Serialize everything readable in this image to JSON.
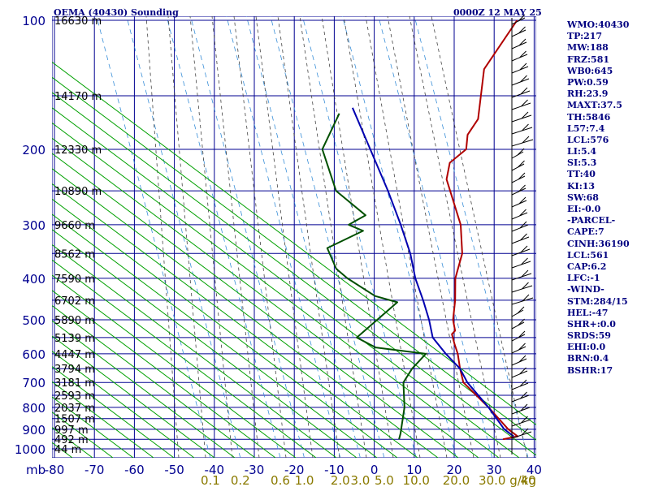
{
  "header": {
    "title": "OEMA (40430) Sounding",
    "timestamp": "0000Z 12 MAY 25"
  },
  "colors": {
    "grid": "#000090",
    "isotherm": "#000090",
    "dry_adiabat": "#00a000",
    "moist_adiabat": "#444444",
    "mixing_ratio": "#3a8fd8",
    "temperature": "#b00000",
    "dewpoint": "#005000",
    "parcel": "#0000b0",
    "axis_label": "#000090",
    "mixing_label": "#8a7a00"
  },
  "indices": [
    "WMO:40430",
    "TP:217",
    "MW:188",
    "FRZ:581",
    "WB0:645",
    "PW:0.59",
    "RH:23.9",
    "MAXT:37.5",
    "TH:5846",
    "L57:7.4",
    "LCL:576",
    "LI:5.4",
    "SI:5.3",
    "TT:40",
    "KI:13",
    "SW:68",
    "EI:-0.0",
    "-PARCEL-",
    "CAPE:7",
    "CINH:36190",
    "LCL:561",
    "CAP:6.2",
    "LFC:-1",
    "-WIND-",
    "STM:284/15",
    "HEL:-47",
    "SHR+:0.0",
    "SRDS:59",
    "EHI:0.0",
    "BRN:0.4",
    "BSHR:17"
  ],
  "chart_data": {
    "type": "line",
    "title": "OEMA (40430) Sounding",
    "xlabel": "",
    "ylabel": "mb",
    "x_unit": "°C",
    "y_scale": "log",
    "ylim": [
      1000,
      100
    ],
    "xlim": [
      -80,
      40
    ],
    "y_ticks": [
      {
        "p": 100,
        "label": "100"
      },
      {
        "p": 200,
        "label": "200"
      },
      {
        "p": 300,
        "label": "300"
      },
      {
        "p": 400,
        "label": "400"
      },
      {
        "p": 500,
        "label": "500"
      },
      {
        "p": 600,
        "label": "600"
      },
      {
        "p": 700,
        "label": "700"
      },
      {
        "p": 800,
        "label": "800"
      },
      {
        "p": 900,
        "label": "900"
      },
      {
        "p": 1000,
        "label": "1000"
      }
    ],
    "x_ticks": [
      {
        "t": -80,
        "label": "-80"
      },
      {
        "t": -70,
        "label": "-70"
      },
      {
        "t": -60,
        "label": "-60"
      },
      {
        "t": -50,
        "label": "-50"
      },
      {
        "t": -40,
        "label": "-40"
      },
      {
        "t": -30,
        "label": "-30"
      },
      {
        "t": -20,
        "label": "-20"
      },
      {
        "t": -10,
        "label": "-10"
      },
      {
        "t": 0,
        "label": "0"
      },
      {
        "t": 10,
        "label": "10"
      },
      {
        "t": 20,
        "label": "20"
      },
      {
        "t": 30,
        "label": "30"
      },
      {
        "t": 40,
        "label": "40"
      }
    ],
    "height_labels": [
      {
        "p": 100,
        "label": "16630 m"
      },
      {
        "p": 150,
        "label": "14170 m"
      },
      {
        "p": 200,
        "label": "12330 m"
      },
      {
        "p": 250,
        "label": "10890 m"
      },
      {
        "p": 300,
        "label": "9660 m"
      },
      {
        "p": 350,
        "label": "8562 m"
      },
      {
        "p": 400,
        "label": "7590 m"
      },
      {
        "p": 450,
        "label": "6702 m"
      },
      {
        "p": 500,
        "label": "5890 m"
      },
      {
        "p": 550,
        "label": "5139 m"
      },
      {
        "p": 600,
        "label": "4447 m"
      },
      {
        "p": 650,
        "label": "3794 m"
      },
      {
        "p": 700,
        "label": "3181 m"
      },
      {
        "p": 750,
        "label": "2593 m"
      },
      {
        "p": 800,
        "label": "2037 m"
      },
      {
        "p": 850,
        "label": "1507 m"
      },
      {
        "p": 900,
        "label": "997 m"
      },
      {
        "p": 950,
        "label": "492 m"
      },
      {
        "p": 1000,
        "label": "44 m"
      }
    ],
    "mixing_ratio_labels": [
      {
        "t": -41,
        "label": "0.1"
      },
      {
        "t": -33.5,
        "label": "0.2"
      },
      {
        "t": -23.5,
        "label": "0.6"
      },
      {
        "t": -17.5,
        "label": "1.0"
      },
      {
        "t": -8.5,
        "label": "2.0"
      },
      {
        "t": -3.5,
        "label": "3.0"
      },
      {
        "t": 2.5,
        "label": "5.0"
      },
      {
        "t": 10.5,
        "label": "10.0"
      },
      {
        "t": 20.5,
        "label": "20.0"
      },
      {
        "t": 29.5,
        "label": "30.0"
      },
      {
        "t": 38.5,
        "label": "40"
      }
    ],
    "mixing_ratio_unit": "g/kg",
    "series": [
      {
        "key": "temperature",
        "points": [
          [
            100,
            -63
          ],
          [
            130,
            -60
          ],
          [
            170,
            -50
          ],
          [
            185,
            -49
          ],
          [
            200,
            -46
          ],
          [
            215,
            -47
          ],
          [
            235,
            -44
          ],
          [
            300,
            -30
          ],
          [
            350,
            -23
          ],
          [
            400,
            -19
          ],
          [
            450,
            -14
          ],
          [
            500,
            -10
          ],
          [
            530,
            -7
          ],
          [
            540,
            -7
          ],
          [
            570,
            -4
          ],
          [
            600,
            -1
          ],
          [
            650,
            3
          ],
          [
            700,
            7
          ],
          [
            800,
            19
          ],
          [
            900,
            29
          ],
          [
            935,
            33
          ],
          [
            950,
            30
          ]
        ]
      },
      {
        "key": "dewpoint",
        "points": [
          [
            165,
            -86
          ],
          [
            200,
            -82
          ],
          [
            250,
            -69
          ],
          [
            285,
            -56
          ],
          [
            300,
            -58
          ],
          [
            310,
            -53
          ],
          [
            340,
            -58
          ],
          [
            380,
            -51
          ],
          [
            400,
            -46
          ],
          [
            440,
            -35
          ],
          [
            455,
            -28
          ],
          [
            500,
            -29
          ],
          [
            550,
            -30
          ],
          [
            580,
            -23
          ],
          [
            600,
            -9
          ],
          [
            650,
            -9
          ],
          [
            700,
            -8
          ],
          [
            800,
            -2
          ],
          [
            920,
            3
          ],
          [
            950,
            4
          ]
        ]
      },
      {
        "key": "parcel",
        "points": [
          [
            160,
            -84
          ],
          [
            200,
            -70
          ],
          [
            250,
            -56
          ],
          [
            300,
            -45
          ],
          [
            350,
            -36
          ],
          [
            400,
            -29
          ],
          [
            450,
            -22
          ],
          [
            500,
            -16
          ],
          [
            550,
            -11
          ],
          [
            600,
            -4
          ],
          [
            650,
            3
          ],
          [
            700,
            8
          ],
          [
            800,
            19
          ],
          [
            900,
            28
          ],
          [
            935,
            32
          ]
        ]
      }
    ]
  }
}
